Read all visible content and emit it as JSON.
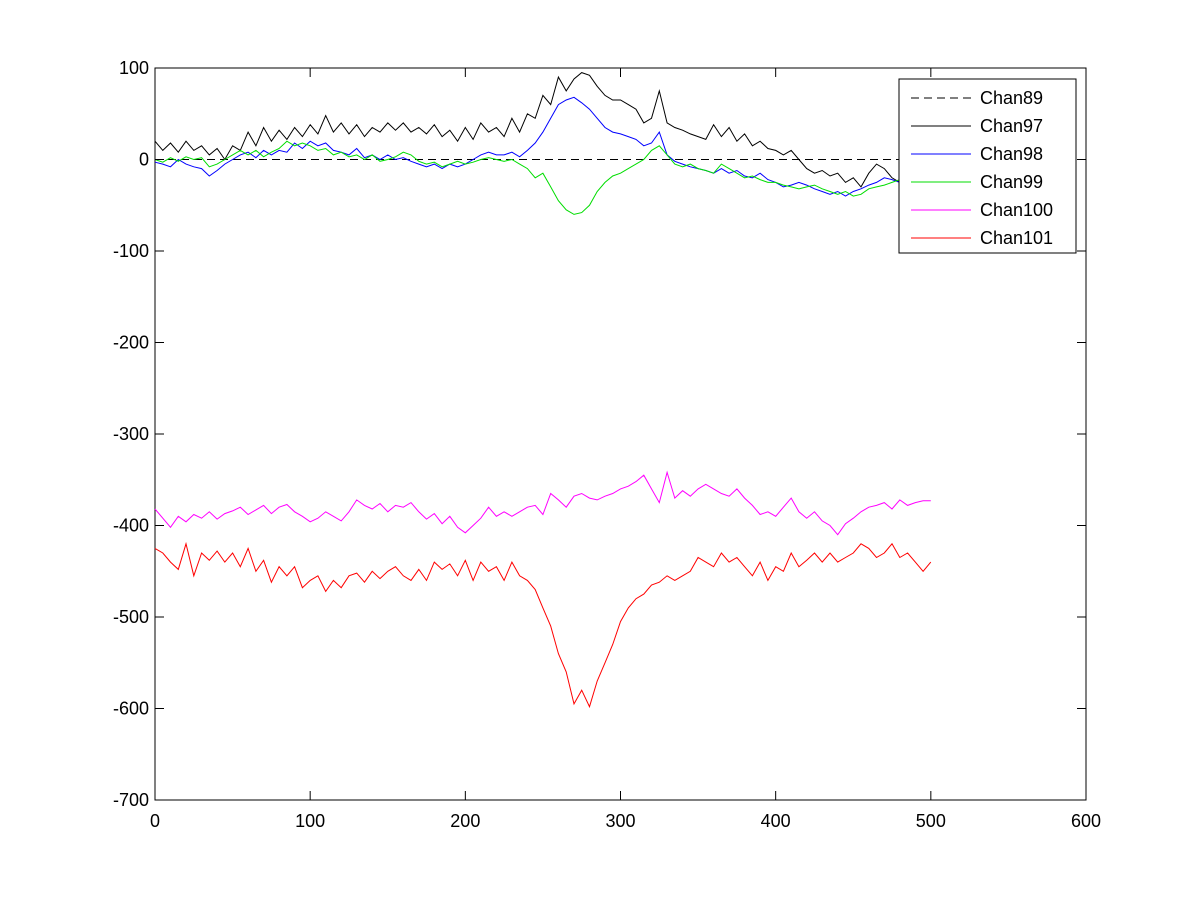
{
  "chart_data": {
    "type": "line",
    "title": "",
    "xlabel": "",
    "ylabel": "",
    "xlim": [
      0,
      600
    ],
    "ylim": [
      -700,
      100
    ],
    "xticks": [
      0,
      100,
      200,
      300,
      400,
      500,
      600
    ],
    "yticks": [
      -700,
      -600,
      -500,
      -400,
      -300,
      -200,
      -100,
      0,
      100
    ],
    "grid": false,
    "legend_position": "top-right",
    "series": [
      {
        "name": "Chan89",
        "color": "#000000",
        "dash": "dashed",
        "x": [
          0,
          500
        ],
        "y": [
          0,
          0
        ]
      },
      {
        "name": "Chan97",
        "color": "#000000",
        "dash": "solid",
        "x": [
          0,
          5,
          10,
          15,
          20,
          25,
          30,
          35,
          40,
          45,
          50,
          55,
          60,
          65,
          70,
          75,
          80,
          85,
          90,
          95,
          100,
          105,
          110,
          115,
          120,
          125,
          130,
          135,
          140,
          145,
          150,
          155,
          160,
          165,
          170,
          175,
          180,
          185,
          190,
          195,
          200,
          205,
          210,
          215,
          220,
          225,
          230,
          235,
          240,
          245,
          250,
          255,
          260,
          265,
          270,
          275,
          280,
          285,
          290,
          295,
          300,
          305,
          310,
          315,
          320,
          325,
          330,
          335,
          340,
          345,
          350,
          355,
          360,
          365,
          370,
          375,
          380,
          385,
          390,
          395,
          400,
          405,
          410,
          415,
          420,
          425,
          430,
          435,
          440,
          445,
          450,
          455,
          460,
          465,
          470,
          475,
          480,
          485,
          490,
          495,
          500
        ],
        "y": [
          20,
          10,
          18,
          8,
          20,
          10,
          15,
          5,
          12,
          0,
          15,
          10,
          30,
          15,
          35,
          20,
          32,
          22,
          35,
          25,
          38,
          28,
          48,
          30,
          40,
          28,
          38,
          25,
          35,
          30,
          40,
          32,
          40,
          30,
          35,
          28,
          38,
          25,
          32,
          20,
          35,
          22,
          40,
          30,
          35,
          25,
          45,
          30,
          50,
          45,
          70,
          60,
          90,
          75,
          88,
          95,
          92,
          80,
          70,
          65,
          65,
          60,
          55,
          40,
          45,
          75,
          40,
          35,
          32,
          28,
          25,
          22,
          38,
          25,
          35,
          20,
          28,
          15,
          20,
          12,
          10,
          5,
          10,
          0,
          -10,
          -15,
          -12,
          -18,
          -15,
          -25,
          -20,
          -30,
          -15,
          -5,
          -10,
          -20,
          -25,
          -20,
          -25,
          -30,
          -28
        ]
      },
      {
        "name": "Chan98",
        "color": "#0000ff",
        "dash": "solid",
        "x": [
          0,
          5,
          10,
          15,
          20,
          25,
          30,
          35,
          40,
          45,
          50,
          55,
          60,
          65,
          70,
          75,
          80,
          85,
          90,
          95,
          100,
          105,
          110,
          115,
          120,
          125,
          130,
          135,
          140,
          145,
          150,
          155,
          160,
          165,
          170,
          175,
          180,
          185,
          190,
          195,
          200,
          205,
          210,
          215,
          220,
          225,
          230,
          235,
          240,
          245,
          250,
          255,
          260,
          265,
          270,
          275,
          280,
          285,
          290,
          295,
          300,
          305,
          310,
          315,
          320,
          325,
          330,
          335,
          340,
          345,
          350,
          355,
          360,
          365,
          370,
          375,
          380,
          385,
          390,
          395,
          400,
          405,
          410,
          415,
          420,
          425,
          430,
          435,
          440,
          445,
          450,
          455,
          460,
          465,
          470,
          475,
          480,
          485,
          490,
          495,
          500
        ],
        "y": [
          -3,
          -5,
          -8,
          0,
          -5,
          -8,
          -10,
          -18,
          -12,
          -5,
          0,
          5,
          8,
          2,
          10,
          5,
          10,
          8,
          18,
          12,
          20,
          15,
          18,
          10,
          8,
          5,
          12,
          2,
          5,
          0,
          5,
          0,
          2,
          -2,
          -5,
          -8,
          -5,
          -10,
          -5,
          -8,
          -5,
          0,
          5,
          8,
          5,
          5,
          8,
          3,
          10,
          18,
          30,
          45,
          60,
          65,
          68,
          62,
          55,
          45,
          35,
          30,
          28,
          25,
          22,
          15,
          18,
          30,
          5,
          -2,
          -5,
          -8,
          -10,
          -12,
          -15,
          -10,
          -15,
          -12,
          -18,
          -20,
          -15,
          -22,
          -25,
          -30,
          -28,
          -25,
          -28,
          -32,
          -35,
          -38,
          -35,
          -40,
          -35,
          -32,
          -28,
          -25,
          -20,
          -22,
          -25,
          -28,
          -30,
          -32,
          -30
        ]
      },
      {
        "name": "Chan99",
        "color": "#00dd00",
        "dash": "solid",
        "x": [
          0,
          5,
          10,
          15,
          20,
          25,
          30,
          35,
          40,
          45,
          50,
          55,
          60,
          65,
          70,
          75,
          80,
          85,
          90,
          95,
          100,
          105,
          110,
          115,
          120,
          125,
          130,
          135,
          140,
          145,
          150,
          155,
          160,
          165,
          170,
          175,
          180,
          185,
          190,
          195,
          200,
          205,
          210,
          215,
          220,
          225,
          230,
          235,
          240,
          245,
          250,
          255,
          260,
          265,
          270,
          275,
          280,
          285,
          290,
          295,
          300,
          305,
          310,
          315,
          320,
          325,
          330,
          335,
          340,
          345,
          350,
          355,
          360,
          365,
          370,
          375,
          380,
          385,
          390,
          395,
          400,
          405,
          410,
          415,
          420,
          425,
          430,
          435,
          440,
          445,
          450,
          455,
          460,
          465,
          470,
          475,
          480,
          485,
          490,
          495,
          500
        ],
        "y": [
          0,
          -3,
          2,
          -2,
          3,
          0,
          2,
          -8,
          -5,
          0,
          5,
          10,
          5,
          10,
          3,
          8,
          12,
          20,
          15,
          18,
          15,
          10,
          12,
          5,
          8,
          3,
          5,
          0,
          5,
          -2,
          0,
          3,
          8,
          5,
          -2,
          -5,
          -3,
          -8,
          -5,
          -2,
          -5,
          -3,
          0,
          2,
          0,
          -2,
          0,
          -5,
          -10,
          -20,
          -15,
          -30,
          -45,
          -55,
          -60,
          -58,
          -50,
          -35,
          -25,
          -18,
          -15,
          -10,
          -5,
          0,
          10,
          15,
          5,
          -5,
          -8,
          -5,
          -10,
          -12,
          -15,
          -5,
          -10,
          -15,
          -20,
          -18,
          -22,
          -25,
          -25,
          -28,
          -30,
          -32,
          -30,
          -28,
          -32,
          -35,
          -38,
          -35,
          -40,
          -38,
          -32,
          -30,
          -28,
          -25,
          -22,
          -25,
          -28,
          -30,
          -28
        ]
      },
      {
        "name": "Chan100",
        "color": "#ff00ff",
        "dash": "solid",
        "x": [
          0,
          5,
          10,
          15,
          20,
          25,
          30,
          35,
          40,
          45,
          50,
          55,
          60,
          65,
          70,
          75,
          80,
          85,
          90,
          95,
          100,
          105,
          110,
          115,
          120,
          125,
          130,
          135,
          140,
          145,
          150,
          155,
          160,
          165,
          170,
          175,
          180,
          185,
          190,
          195,
          200,
          205,
          210,
          215,
          220,
          225,
          230,
          235,
          240,
          245,
          250,
          255,
          260,
          265,
          270,
          275,
          280,
          285,
          290,
          295,
          300,
          305,
          310,
          315,
          320,
          325,
          330,
          335,
          340,
          345,
          350,
          355,
          360,
          365,
          370,
          375,
          380,
          385,
          390,
          395,
          400,
          405,
          410,
          415,
          420,
          425,
          430,
          435,
          440,
          445,
          450,
          455,
          460,
          465,
          470,
          475,
          480,
          485,
          490,
          495,
          500
        ],
        "y": [
          -382,
          -392,
          -402,
          -390,
          -396,
          -388,
          -392,
          -385,
          -393,
          -387,
          -384,
          -380,
          -388,
          -383,
          -378,
          -387,
          -380,
          -377,
          -385,
          -390,
          -396,
          -392,
          -385,
          -390,
          -395,
          -385,
          -372,
          -378,
          -382,
          -376,
          -385,
          -378,
          -380,
          -375,
          -385,
          -393,
          -387,
          -398,
          -390,
          -402,
          -408,
          -400,
          -392,
          -380,
          -390,
          -385,
          -390,
          -385,
          -380,
          -378,
          -388,
          -365,
          -372,
          -380,
          -368,
          -365,
          -370,
          -372,
          -368,
          -365,
          -360,
          -357,
          -352,
          -345,
          -360,
          -375,
          -342,
          -370,
          -362,
          -368,
          -360,
          -355,
          -360,
          -365,
          -368,
          -360,
          -370,
          -378,
          -388,
          -385,
          -390,
          -380,
          -370,
          -385,
          -392,
          -385,
          -395,
          -400,
          -410,
          -398,
          -392,
          -385,
          -380,
          -378,
          -375,
          -382,
          -372,
          -378,
          -375,
          -373,
          -373
        ]
      },
      {
        "name": "Chan101",
        "color": "#ff0000",
        "dash": "solid",
        "x": [
          0,
          5,
          10,
          15,
          20,
          25,
          30,
          35,
          40,
          45,
          50,
          55,
          60,
          65,
          70,
          75,
          80,
          85,
          90,
          95,
          100,
          105,
          110,
          115,
          120,
          125,
          130,
          135,
          140,
          145,
          150,
          155,
          160,
          165,
          170,
          175,
          180,
          185,
          190,
          195,
          200,
          205,
          210,
          215,
          220,
          225,
          230,
          235,
          240,
          245,
          250,
          255,
          260,
          265,
          270,
          275,
          280,
          285,
          290,
          295,
          300,
          305,
          310,
          315,
          320,
          325,
          330,
          335,
          340,
          345,
          350,
          355,
          360,
          365,
          370,
          375,
          380,
          385,
          390,
          395,
          400,
          405,
          410,
          415,
          420,
          425,
          430,
          435,
          440,
          445,
          450,
          455,
          460,
          465,
          470,
          475,
          480,
          485,
          490,
          495,
          500
        ],
        "y": [
          -425,
          -430,
          -440,
          -448,
          -420,
          -455,
          -430,
          -438,
          -428,
          -440,
          -430,
          -445,
          -425,
          -450,
          -438,
          -462,
          -445,
          -455,
          -445,
          -468,
          -460,
          -455,
          -472,
          -460,
          -468,
          -455,
          -452,
          -462,
          -450,
          -458,
          -450,
          -445,
          -455,
          -460,
          -448,
          -460,
          -440,
          -448,
          -442,
          -455,
          -438,
          -460,
          -440,
          -450,
          -445,
          -460,
          -440,
          -455,
          -460,
          -470,
          -490,
          -510,
          -540,
          -560,
          -595,
          -580,
          -598,
          -570,
          -550,
          -530,
          -505,
          -490,
          -480,
          -475,
          -465,
          -462,
          -455,
          -460,
          -455,
          -450,
          -435,
          -440,
          -445,
          -430,
          -440,
          -435,
          -445,
          -455,
          -440,
          -460,
          -445,
          -450,
          -430,
          -445,
          -438,
          -430,
          -440,
          -430,
          -440,
          -435,
          -430,
          -420,
          -425,
          -435,
          -430,
          -420,
          -435,
          -430,
          -440,
          -450,
          -440
        ]
      }
    ]
  }
}
